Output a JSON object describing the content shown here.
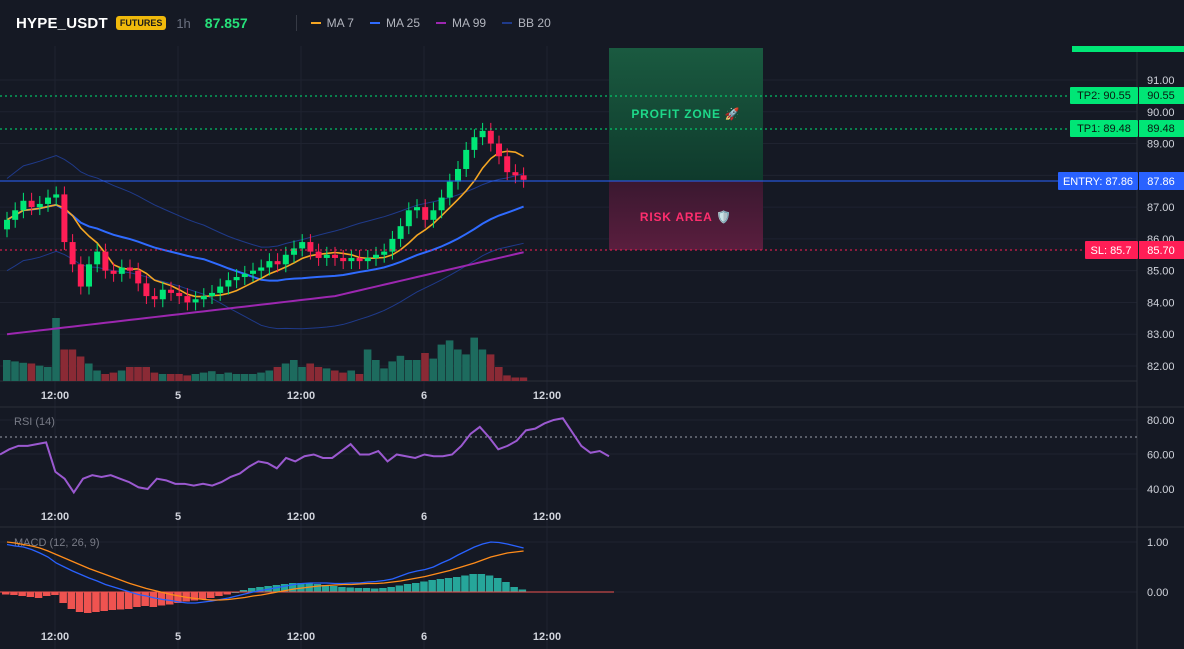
{
  "header": {
    "symbol": "HYPE_USDT",
    "badge": "FUTURES",
    "interval": "1h",
    "last_price": "87.857",
    "indicators": [
      {
        "label": "MA 7",
        "color": "#f5a623"
      },
      {
        "label": "MA 25",
        "color": "#2f6bff"
      },
      {
        "label": "MA 99",
        "color": "#9c27b0"
      },
      {
        "label": "BB 20",
        "color": "#1f3a8a"
      }
    ]
  },
  "colors": {
    "up": "#26a69a",
    "up_bright": "#00e676",
    "down": "#ff1e56",
    "tp": "#00e676",
    "entry": "#2962ff",
    "sl": "#ff1e56",
    "rsi": "#9b59d0",
    "macd": "#2962ff",
    "signal": "#ff8c1a"
  },
  "zones": {
    "profit_label": "PROFIT ZONE 🚀",
    "risk_label": "RISK AREA 🛡️"
  },
  "levels": {
    "tp2": {
      "tag": "TP2: 90.55",
      "axis": "90.55",
      "price": 90.55
    },
    "tp1": {
      "tag": "TP1: 89.48",
      "axis": "89.48",
      "price": 89.48
    },
    "entry": {
      "tag": "ENTRY: 87.86",
      "axis": "87.86",
      "price": 87.86
    },
    "sl": {
      "tag": "SL: 85.7",
      "axis": "85.70",
      "price": 85.7
    }
  },
  "price_axis": [
    "91.00",
    "90.00",
    "89.00",
    "88.00",
    "87.00",
    "86.00",
    "85.00",
    "84.00",
    "83.00",
    "82.00"
  ],
  "time_axis": [
    "12:00",
    "5",
    "12:00",
    "6",
    "12:00"
  ],
  "rsi": {
    "label": "RSI (14)",
    "axis": [
      "80.00",
      "60.00",
      "40.00"
    ],
    "values": [
      60,
      63,
      65,
      65,
      66,
      67,
      50,
      46,
      38,
      46,
      48,
      47,
      48,
      46,
      44,
      41,
      40,
      46,
      45,
      43,
      43,
      42,
      43,
      42,
      44,
      47,
      49,
      53,
      56,
      55,
      52,
      58,
      56,
      59,
      60,
      58,
      58,
      62,
      66,
      60,
      60,
      62,
      56,
      60,
      59,
      58,
      60,
      59,
      59,
      60,
      65,
      72,
      76,
      70,
      63,
      65,
      68,
      74,
      75,
      78,
      80,
      81,
      73,
      65,
      61,
      62,
      59
    ]
  },
  "macd": {
    "label": "MACD (12, 26, 9)",
    "axis": [
      "1.00",
      "0.00"
    ],
    "hist": [
      -0.05,
      -0.06,
      -0.08,
      -0.1,
      -0.12,
      -0.08,
      -0.06,
      -0.22,
      -0.34,
      -0.4,
      -0.42,
      -0.4,
      -0.38,
      -0.36,
      -0.35,
      -0.34,
      -0.3,
      -0.28,
      -0.3,
      -0.27,
      -0.25,
      -0.22,
      -0.19,
      -0.17,
      -0.14,
      -0.12,
      -0.08,
      -0.05,
      0.0,
      0.04,
      0.08,
      0.1,
      0.12,
      0.14,
      0.16,
      0.18,
      0.18,
      0.17,
      0.16,
      0.14,
      0.12,
      0.1,
      0.09,
      0.08,
      0.08,
      0.07,
      0.08,
      0.1,
      0.13,
      0.16,
      0.18,
      0.21,
      0.24,
      0.26,
      0.28,
      0.3,
      0.33,
      0.36,
      0.36,
      0.33,
      0.28,
      0.2,
      0.1,
      0.05
    ],
    "macd_line": [
      0.95,
      0.92,
      0.9,
      0.85,
      0.78,
      0.7,
      0.58,
      0.5,
      0.42,
      0.35,
      0.28,
      0.22,
      0.15,
      0.1,
      0.05,
      0.0,
      -0.05,
      -0.08,
      -0.12,
      -0.15,
      -0.17,
      -0.2,
      -0.22,
      -0.22,
      -0.2,
      -0.18,
      -0.15,
      -0.12,
      -0.08,
      -0.04,
      0.0,
      0.03,
      0.06,
      0.09,
      0.12,
      0.15,
      0.17,
      0.18,
      0.18,
      0.18,
      0.17,
      0.17,
      0.18,
      0.18,
      0.2,
      0.21,
      0.23,
      0.26,
      0.32,
      0.38,
      0.42,
      0.45,
      0.5,
      0.58,
      0.65,
      0.74,
      0.82,
      0.9,
      0.96,
      1.0,
      0.99,
      0.96,
      0.92,
      0.88
    ],
    "signal_line": [
      1.0,
      0.98,
      0.95,
      0.92,
      0.88,
      0.82,
      0.75,
      0.68,
      0.61,
      0.54,
      0.47,
      0.41,
      0.35,
      0.29,
      0.23,
      0.17,
      0.12,
      0.07,
      0.03,
      -0.01,
      -0.05,
      -0.08,
      -0.11,
      -0.13,
      -0.15,
      -0.16,
      -0.16,
      -0.15,
      -0.13,
      -0.11,
      -0.08,
      -0.06,
      -0.03,
      0.0,
      0.03,
      0.06,
      0.08,
      0.1,
      0.12,
      0.13,
      0.14,
      0.15,
      0.15,
      0.16,
      0.17,
      0.17,
      0.18,
      0.2,
      0.22,
      0.25,
      0.28,
      0.31,
      0.35,
      0.39,
      0.43,
      0.48,
      0.53,
      0.58,
      0.64,
      0.7,
      0.74,
      0.78,
      0.8,
      0.82
    ]
  }
}
